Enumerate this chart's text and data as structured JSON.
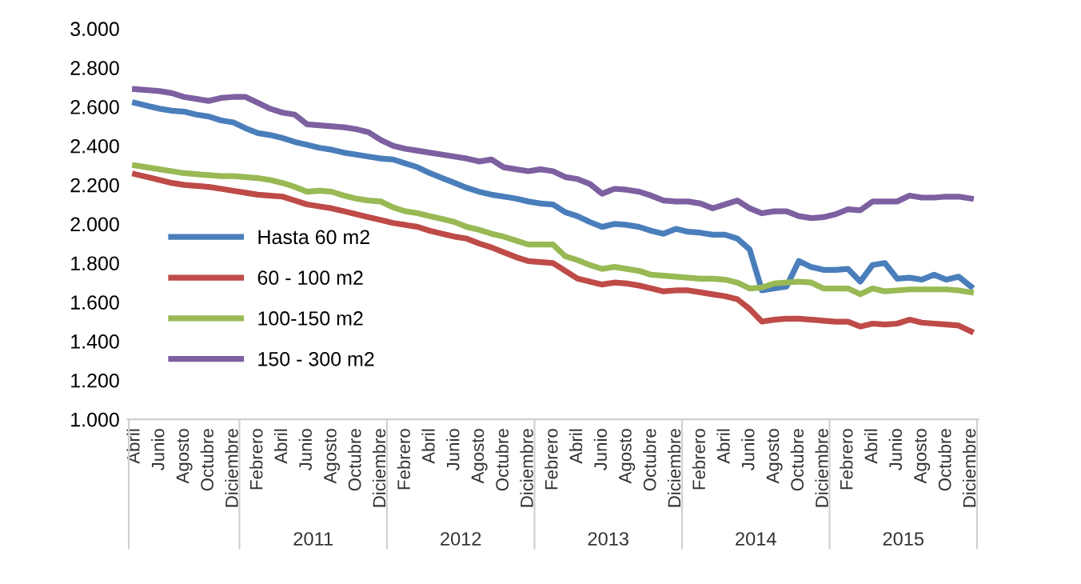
{
  "chart_data": {
    "type": "line",
    "categories": [
      "Abril",
      null,
      "Junio",
      null,
      "Agosto",
      null,
      "Octubre",
      null,
      "Diciembre",
      null,
      "Febrero",
      null,
      "Abril",
      null,
      "Junio",
      null,
      "Agosto",
      null,
      "Octubre",
      null,
      "Diciembre",
      null,
      "Febrero",
      null,
      "Abril",
      null,
      "Junio",
      null,
      "Agosto",
      null,
      "Octubre",
      null,
      "Diciembre",
      null,
      "Febrero",
      null,
      "Abril",
      null,
      "Junio",
      null,
      "Agosto",
      null,
      "Octubre",
      null,
      "Diciembre",
      null,
      "Febrero",
      null,
      "Abril",
      null,
      "Junio",
      null,
      "Agosto",
      null,
      "Octubre",
      null,
      "Diciembre",
      null,
      "Febrero",
      null,
      "Abril",
      null,
      "Junio",
      null,
      "Agosto",
      null,
      "Octubre",
      null,
      "Diciembre"
    ],
    "series": [
      {
        "name": "Hasta 60 m2",
        "color": "#4a7ebb",
        "values": [
          2620,
          2605,
          2590,
          2580,
          2575,
          2560,
          2550,
          2530,
          2520,
          2490,
          2465,
          2455,
          2440,
          2420,
          2405,
          2390,
          2380,
          2365,
          2355,
          2345,
          2335,
          2330,
          2310,
          2290,
          2260,
          2235,
          2210,
          2185,
          2165,
          2150,
          2140,
          2130,
          2115,
          2105,
          2100,
          2060,
          2040,
          2010,
          1985,
          2000,
          1995,
          1985,
          1965,
          1950,
          1975,
          1960,
          1955,
          1945,
          1945,
          1925,
          1870,
          1660,
          1670,
          1680,
          1810,
          1780,
          1765,
          1765,
          1770,
          1705,
          1790,
          1800,
          1720,
          1725,
          1715,
          1740,
          1715,
          1730,
          1680
        ]
      },
      {
        "name": "60 - 100 m2",
        "color": "#be4b48",
        "values": [
          2255,
          2240,
          2225,
          2210,
          2200,
          2195,
          2190,
          2180,
          2170,
          2160,
          2150,
          2145,
          2140,
          2120,
          2100,
          2090,
          2080,
          2065,
          2050,
          2035,
          2020,
          2005,
          1995,
          1985,
          1965,
          1950,
          1935,
          1925,
          1900,
          1880,
          1855,
          1830,
          1810,
          1805,
          1800,
          1760,
          1720,
          1705,
          1690,
          1700,
          1695,
          1685,
          1670,
          1655,
          1660,
          1660,
          1650,
          1640,
          1630,
          1615,
          1565,
          1500,
          1510,
          1515,
          1515,
          1510,
          1505,
          1500,
          1500,
          1475,
          1490,
          1485,
          1490,
          1510,
          1495,
          1490,
          1485,
          1480,
          1450
        ]
      },
      {
        "name": "100-150 m2",
        "color": "#98b954",
        "values": [
          2300,
          2290,
          2280,
          2270,
          2260,
          2255,
          2250,
          2245,
          2245,
          2240,
          2235,
          2225,
          2210,
          2190,
          2165,
          2170,
          2165,
          2145,
          2130,
          2120,
          2115,
          2085,
          2065,
          2055,
          2040,
          2025,
          2010,
          1985,
          1970,
          1950,
          1935,
          1915,
          1895,
          1895,
          1895,
          1835,
          1815,
          1790,
          1770,
          1780,
          1770,
          1760,
          1740,
          1735,
          1730,
          1725,
          1720,
          1720,
          1715,
          1700,
          1670,
          1675,
          1695,
          1700,
          1705,
          1700,
          1670,
          1670,
          1670,
          1640,
          1670,
          1655,
          1660,
          1665,
          1665,
          1665,
          1665,
          1660,
          1650
        ]
      },
      {
        "name": "150 - 300 m2",
        "color": "#7d60a0",
        "values": [
          2690,
          2685,
          2680,
          2670,
          2650,
          2640,
          2630,
          2645,
          2650,
          2650,
          2620,
          2590,
          2570,
          2560,
          2510,
          2505,
          2500,
          2495,
          2485,
          2470,
          2430,
          2400,
          2385,
          2375,
          2365,
          2355,
          2345,
          2335,
          2320,
          2330,
          2290,
          2280,
          2270,
          2280,
          2270,
          2240,
          2230,
          2205,
          2155,
          2180,
          2175,
          2165,
          2145,
          2120,
          2115,
          2115,
          2105,
          2080,
          2100,
          2120,
          2080,
          2055,
          2065,
          2065,
          2040,
          2030,
          2035,
          2050,
          2075,
          2070,
          2115,
          2115,
          2115,
          2145,
          2135,
          2135,
          2140,
          2140,
          2130
        ]
      }
    ],
    "ylim": [
      1000,
      3000
    ],
    "yticks": [
      {
        "value": 1000,
        "label": "1.000"
      },
      {
        "value": 1200,
        "label": "1.200"
      },
      {
        "value": 1400,
        "label": "1.400"
      },
      {
        "value": 1600,
        "label": "1.600"
      },
      {
        "value": 1800,
        "label": "1.800"
      },
      {
        "value": 2000,
        "label": "2.000"
      },
      {
        "value": 2200,
        "label": "2.200"
      },
      {
        "value": 2400,
        "label": "2.400"
      },
      {
        "value": 2600,
        "label": "2.600"
      },
      {
        "value": 2800,
        "label": "2.800"
      },
      {
        "value": 3000,
        "label": "3.000"
      }
    ],
    "annotations": [
      "2011",
      "2012",
      "2013",
      "2014",
      "2015"
    ],
    "legend": "bottom left",
    "grid": false,
    "marker": "none",
    "line_style": "solid"
  }
}
